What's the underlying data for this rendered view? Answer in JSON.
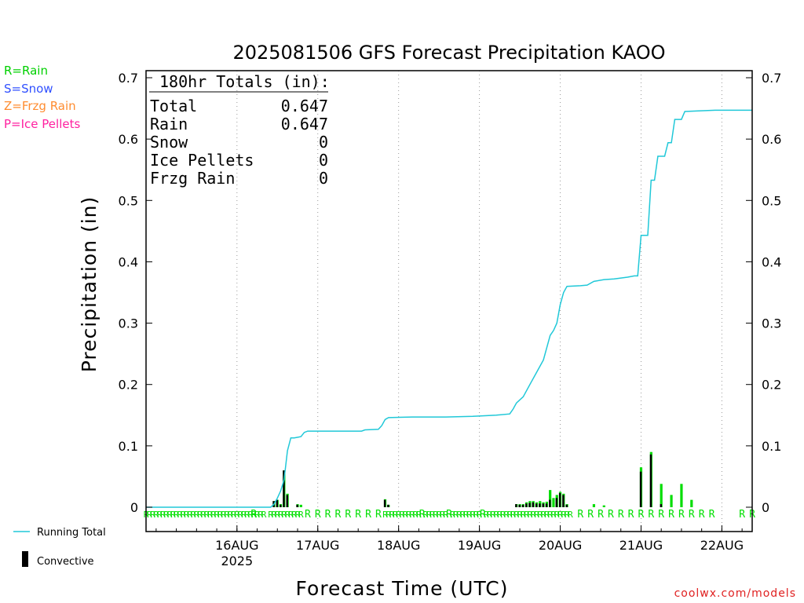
{
  "title": "2025081506 GFS Forecast Precipitation KAOO",
  "legend": [
    {
      "text": "R=Rain",
      "color": "#00d000"
    },
    {
      "text": "S=Snow",
      "color": "#3050ff"
    },
    {
      "text": "Z=Frzg Rain",
      "color": "#ff8c30"
    },
    {
      "text": "P=Ice Pellets",
      "color": "#ff20a0"
    }
  ],
  "bottom_legend": {
    "running_total": "Running Total",
    "convective": "Convective"
  },
  "totals_box": {
    "header": "180hr Totals (in):",
    "rows": [
      {
        "label": "Total",
        "value": "0.647"
      },
      {
        "label": "Rain",
        "value": "0.647"
      },
      {
        "label": "Snow",
        "value": "0"
      },
      {
        "label": "Ice Pellets",
        "value": "0"
      },
      {
        "label": "Frzg Rain",
        "value": "0"
      }
    ]
  },
  "credit": "coolwx.com/models",
  "colors": {
    "running_total": "#20c8d8",
    "rain_bar": "#00dd00",
    "convective": "#000000",
    "grid": "#999999"
  },
  "chart_data": {
    "type": "bar",
    "title": "2025081506 GFS Forecast Precipitation KAOO",
    "xlabel": "Forecast Time (UTC)",
    "ylabel": "Precipitation (in)",
    "ylim": [
      0,
      0.7
    ],
    "yticks": [
      "0",
      "0.1",
      "0.2",
      "0.3",
      "0.4",
      "0.5",
      "0.6",
      "0.7"
    ],
    "x_range_hours": [
      -9,
      171
    ],
    "xticks": [
      {
        "hour": 18,
        "label": "16AUG",
        "sub": "2025"
      },
      {
        "hour": 42,
        "label": "17AUG",
        "sub": ""
      },
      {
        "hour": 66,
        "label": "18AUG",
        "sub": ""
      },
      {
        "hour": 90,
        "label": "19AUG",
        "sub": ""
      },
      {
        "hour": 114,
        "label": "20AUG",
        "sub": ""
      },
      {
        "hour": 138,
        "label": "21AUG",
        "sub": ""
      },
      {
        "hour": 162,
        "label": "22AUG",
        "sub": ""
      }
    ],
    "grid": "vertical dotted at day boundaries",
    "running_total": {
      "name": "Running Total",
      "points": [
        [
          -9,
          0
        ],
        [
          19,
          0
        ],
        [
          28,
          0
        ],
        [
          29,
          0.005
        ],
        [
          30,
          0.015
        ],
        [
          31,
          0.027
        ],
        [
          32,
          0.045
        ],
        [
          33,
          0.092
        ],
        [
          34,
          0.113
        ],
        [
          35,
          0.113
        ],
        [
          37,
          0.115
        ],
        [
          38,
          0.122
        ],
        [
          39,
          0.124
        ],
        [
          45,
          0.124
        ],
        [
          51,
          0.124
        ],
        [
          55,
          0.124
        ],
        [
          56,
          0.126
        ],
        [
          60,
          0.127
        ],
        [
          61,
          0.133
        ],
        [
          62,
          0.143
        ],
        [
          63,
          0.146
        ],
        [
          70,
          0.147
        ],
        [
          80,
          0.147
        ],
        [
          88,
          0.148
        ],
        [
          91,
          0.149
        ],
        [
          95,
          0.15
        ],
        [
          99,
          0.152
        ],
        [
          100,
          0.16
        ],
        [
          101,
          0.17
        ],
        [
          103,
          0.18
        ],
        [
          105,
          0.2
        ],
        [
          107,
          0.22
        ],
        [
          109,
          0.24
        ],
        [
          110,
          0.26
        ],
        [
          111,
          0.28
        ],
        [
          112,
          0.288
        ],
        [
          113,
          0.3
        ],
        [
          114,
          0.33
        ],
        [
          115,
          0.35
        ],
        [
          116,
          0.36
        ],
        [
          120,
          0.361
        ],
        [
          122,
          0.362
        ],
        [
          124,
          0.368
        ],
        [
          127,
          0.371
        ],
        [
          130,
          0.372
        ],
        [
          134,
          0.375
        ],
        [
          136,
          0.377
        ],
        [
          137,
          0.377
        ],
        [
          138,
          0.443
        ],
        [
          140,
          0.443
        ],
        [
          141,
          0.533
        ],
        [
          142,
          0.533
        ],
        [
          143,
          0.572
        ],
        [
          145,
          0.572
        ],
        [
          146,
          0.594
        ],
        [
          147,
          0.594
        ],
        [
          148,
          0.632
        ],
        [
          150,
          0.632
        ],
        [
          151,
          0.645
        ],
        [
          155,
          0.646
        ],
        [
          160,
          0.647
        ],
        [
          171,
          0.647
        ]
      ]
    },
    "precip_bars": {
      "name": "Precip",
      "points": [
        [
          29,
          0.01
        ],
        [
          30,
          0.012
        ],
        [
          31,
          0.005
        ],
        [
          32,
          0.06
        ],
        [
          33,
          0.022
        ],
        [
          36,
          0.005
        ],
        [
          37,
          0.004
        ],
        [
          62,
          0.013
        ],
        [
          63,
          0.004
        ],
        [
          101,
          0.005
        ],
        [
          102,
          0.005
        ],
        [
          103,
          0.005
        ],
        [
          104,
          0.008
        ],
        [
          105,
          0.01
        ],
        [
          106,
          0.01
        ],
        [
          107,
          0.008
        ],
        [
          108,
          0.01
        ],
        [
          109,
          0.008
        ],
        [
          110,
          0.009
        ],
        [
          111,
          0.028
        ],
        [
          112,
          0.015
        ],
        [
          113,
          0.02
        ],
        [
          114,
          0.025
        ],
        [
          115,
          0.022
        ],
        [
          116,
          0.005
        ],
        [
          124,
          0.005
        ],
        [
          127,
          0.003
        ],
        [
          138,
          0.065
        ],
        [
          141,
          0.09
        ],
        [
          144,
          0.038
        ],
        [
          147,
          0.02
        ],
        [
          150,
          0.038
        ],
        [
          153,
          0.012
        ]
      ]
    },
    "convective_bars": {
      "name": "Convective",
      "points": [
        [
          29,
          0.01
        ],
        [
          30,
          0.012
        ],
        [
          31,
          0.004
        ],
        [
          32,
          0.06
        ],
        [
          33,
          0.02
        ],
        [
          36,
          0.004
        ],
        [
          62,
          0.012
        ],
        [
          63,
          0.004
        ],
        [
          101,
          0.005
        ],
        [
          102,
          0.004
        ],
        [
          103,
          0.004
        ],
        [
          104,
          0.006
        ],
        [
          105,
          0.007
        ],
        [
          106,
          0.008
        ],
        [
          107,
          0.006
        ],
        [
          108,
          0.006
        ],
        [
          109,
          0.006
        ],
        [
          110,
          0.006
        ],
        [
          111,
          0.012
        ],
        [
          113,
          0.015
        ],
        [
          114,
          0.023
        ],
        [
          115,
          0.02
        ],
        [
          116,
          0.004
        ],
        [
          138,
          0.058
        ],
        [
          141,
          0.086
        ],
        [
          144,
          0.005
        ]
      ]
    },
    "ptype_marks": {
      "text": "R",
      "dense_ranges": [
        [
          -9,
          13
        ],
        [
          14,
          20
        ],
        [
          21,
          26
        ],
        [
          28,
          37
        ],
        [
          62,
          72
        ],
        [
          74,
          80
        ],
        [
          82,
          90
        ],
        [
          92,
          117
        ]
      ],
      "sparse_hours": [
        23,
        39,
        42,
        45,
        48,
        51,
        54,
        57,
        60,
        73,
        81,
        91,
        120,
        123,
        126,
        129,
        132,
        135,
        138,
        141,
        144,
        147,
        150,
        153,
        156,
        159,
        168,
        171
      ]
    }
  }
}
